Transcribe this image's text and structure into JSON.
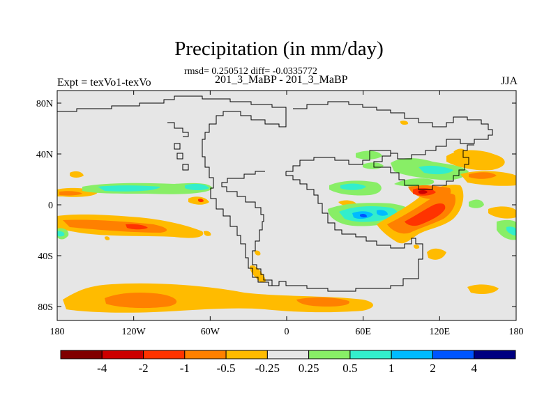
{
  "title": "Precipitation (in mm/day)",
  "stats": "rmsd= 0.250512 diff= -0.0335772",
  "case_id": "201_3_MaBP - 201_3_MaBP",
  "experiment": "Expt = texVo1-texVo",
  "season": "JJA",
  "map": {
    "land_color": "#e6e6e6",
    "x_ticks": [
      "180",
      "120W",
      "60W",
      "0",
      "60E",
      "120E",
      "180"
    ],
    "y_ticks": [
      "80N",
      "40N",
      "0",
      "40S",
      "80S"
    ]
  },
  "colorbar": {
    "colors": [
      "#800000",
      "#cc0000",
      "#ff3300",
      "#ff8000",
      "#ffbb00",
      "#e6e6e6",
      "#88ee66",
      "#33eecc",
      "#00bbff",
      "#0055ff",
      "#000080"
    ],
    "labels": [
      "-4",
      "-2",
      "-1",
      "-0.5",
      "-0.25",
      "0.25",
      "0.5",
      "1",
      "2",
      "4"
    ]
  }
}
